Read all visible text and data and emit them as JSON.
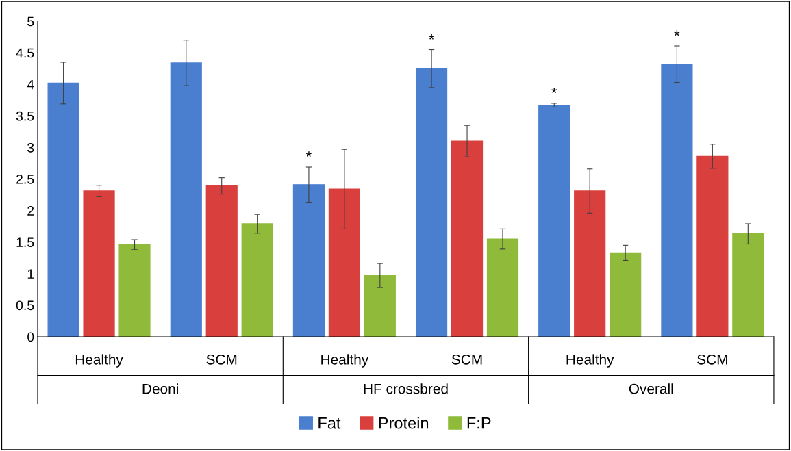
{
  "chart_data": {
    "type": "bar",
    "categories": [
      "Healthy",
      "SCM",
      "Healthy",
      "SCM",
      "Healthy",
      "SCM"
    ],
    "series": [
      {
        "name": "Fat",
        "color": "#4a7fd0",
        "values": [
          4.02,
          4.34,
          2.41,
          4.25,
          3.67,
          4.32
        ],
        "errors": [
          0.33,
          0.36,
          0.28,
          0.3,
          0.03,
          0.29
        ],
        "value_labels": [
          null,
          null,
          "*",
          "*",
          "*",
          "*"
        ]
      },
      {
        "name": "Protein",
        "color": "#d9403d",
        "values": [
          2.31,
          2.39,
          2.34,
          3.1,
          2.31,
          2.86
        ],
        "errors": [
          0.09,
          0.13,
          0.63,
          0.25,
          0.35,
          0.19
        ]
      },
      {
        "name": "F:P",
        "color": "#8fba3a",
        "values": [
          1.46,
          1.79,
          0.97,
          1.55,
          1.33,
          1.63
        ],
        "errors": [
          0.08,
          0.15,
          0.19,
          0.16,
          0.12,
          0.16
        ]
      }
    ],
    "annotations": [
      "Deoni",
      "HF crossbred",
      "Overall"
    ],
    "ylim": [
      0,
      5
    ],
    "yticks": [
      0,
      0.5,
      1,
      1.5,
      2,
      2.5,
      3,
      3.5,
      4,
      4.5,
      5
    ],
    "grid": false,
    "legend": "bottom"
  }
}
